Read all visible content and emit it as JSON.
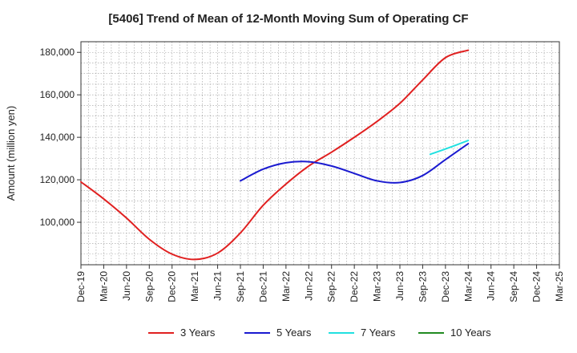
{
  "chart_data": {
    "type": "line",
    "title": "[5406]  Trend of Mean of 12-Month Moving Sum of Operating CF",
    "xlabel": "",
    "ylabel": "Amount (million yen)",
    "ylim": [
      80000,
      185000
    ],
    "yticks": [
      100000,
      120000,
      140000,
      160000,
      180000
    ],
    "ytick_labels": [
      "100,000",
      "120,000",
      "140,000",
      "160,000",
      "180,000"
    ],
    "x_categories": [
      "Dec-19",
      "Mar-20",
      "Jun-20",
      "Sep-20",
      "Dec-20",
      "Mar-21",
      "Jun-21",
      "Sep-21",
      "Dec-21",
      "Mar-22",
      "Jun-22",
      "Sep-22",
      "Dec-22",
      "Mar-23",
      "Jun-23",
      "Sep-23",
      "Dec-23",
      "Mar-24",
      "Jun-24",
      "Sep-24",
      "Dec-24",
      "Mar-25"
    ],
    "grid": true,
    "legend_position": "bottom",
    "series": [
      {
        "name": "3 Years",
        "color": "#e02020",
        "points": [
          [
            0,
            119000
          ],
          [
            1,
            111000
          ],
          [
            2,
            102000
          ],
          [
            3,
            92000
          ],
          [
            4,
            85000
          ],
          [
            5,
            82500
          ],
          [
            6,
            85500
          ],
          [
            7,
            95000
          ],
          [
            8,
            108000
          ],
          [
            9,
            118000
          ],
          [
            10,
            126500
          ],
          [
            11,
            133000
          ],
          [
            12,
            140000
          ],
          [
            13,
            147500
          ],
          [
            14,
            156000
          ],
          [
            15,
            167000
          ],
          [
            16,
            177500
          ],
          [
            17,
            181000
          ]
        ]
      },
      {
        "name": "5 Years",
        "color": "#1a1ad0",
        "points": [
          [
            7,
            119500
          ],
          [
            8,
            125000
          ],
          [
            9,
            128000
          ],
          [
            10,
            128500
          ],
          [
            11,
            126500
          ],
          [
            12,
            123000
          ],
          [
            13,
            119500
          ],
          [
            14,
            118700
          ],
          [
            15,
            122000
          ],
          [
            16,
            129500
          ],
          [
            17,
            137000
          ]
        ]
      },
      {
        "name": "7 Years",
        "color": "#22e0e0",
        "points": [
          [
            15.33,
            132000
          ],
          [
            16,
            134500
          ],
          [
            17,
            138500
          ]
        ]
      },
      {
        "name": "10 Years",
        "color": "#228b22",
        "points": []
      }
    ]
  }
}
